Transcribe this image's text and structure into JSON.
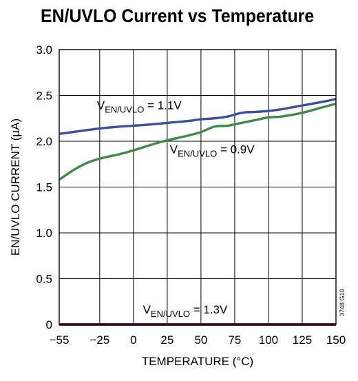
{
  "chart_data": {
    "type": "line",
    "title": "EN/UVLO Current vs Temperature",
    "xlabel": "TEMPERATURE (°C)",
    "ylabel": "EN/UVLO CURRENT (µA)",
    "xlim": [
      -55,
      150
    ],
    "ylim": [
      0,
      3.0
    ],
    "xticks": [
      -55,
      -25,
      0,
      25,
      50,
      75,
      100,
      125,
      150
    ],
    "yticks": [
      0,
      0.5,
      1.0,
      1.5,
      2.0,
      2.5,
      3.0
    ],
    "ytick_labels": [
      "0",
      "0.5",
      "1.0",
      "1.5",
      "2.0",
      "2.5",
      "3.0"
    ],
    "grid": true,
    "figure_id": "3748 G10",
    "series": [
      {
        "label_main": "V",
        "label_sub": "EN/UVLO",
        "label_rest": " = 1.1V",
        "color": "#3a4fa0",
        "x": [
          -55,
          -40,
          -25,
          -10,
          0,
          10,
          25,
          40,
          50,
          60,
          70,
          80,
          90,
          100,
          110,
          125,
          140,
          150
        ],
        "y": [
          2.08,
          2.11,
          2.14,
          2.16,
          2.17,
          2.18,
          2.2,
          2.22,
          2.24,
          2.25,
          2.27,
          2.31,
          2.32,
          2.33,
          2.35,
          2.39,
          2.43,
          2.46
        ]
      },
      {
        "label_main": "V",
        "label_sub": "EN/UVLO",
        "label_rest": " = 0.9V",
        "color": "#3c8a48",
        "x": [
          -55,
          -45,
          -35,
          -25,
          -10,
          0,
          15,
          25,
          40,
          50,
          60,
          70,
          80,
          90,
          100,
          110,
          125,
          140,
          150
        ],
        "y": [
          1.58,
          1.68,
          1.76,
          1.81,
          1.86,
          1.9,
          1.97,
          2.01,
          2.06,
          2.1,
          2.16,
          2.17,
          2.2,
          2.23,
          2.26,
          2.27,
          2.31,
          2.37,
          2.41
        ]
      },
      {
        "label_main": "V",
        "label_sub": "EN/UVLO",
        "label_rest": " = 1.3V",
        "color": "#8b1538",
        "x": [
          -55,
          150
        ],
        "y": [
          0,
          0
        ]
      }
    ]
  }
}
